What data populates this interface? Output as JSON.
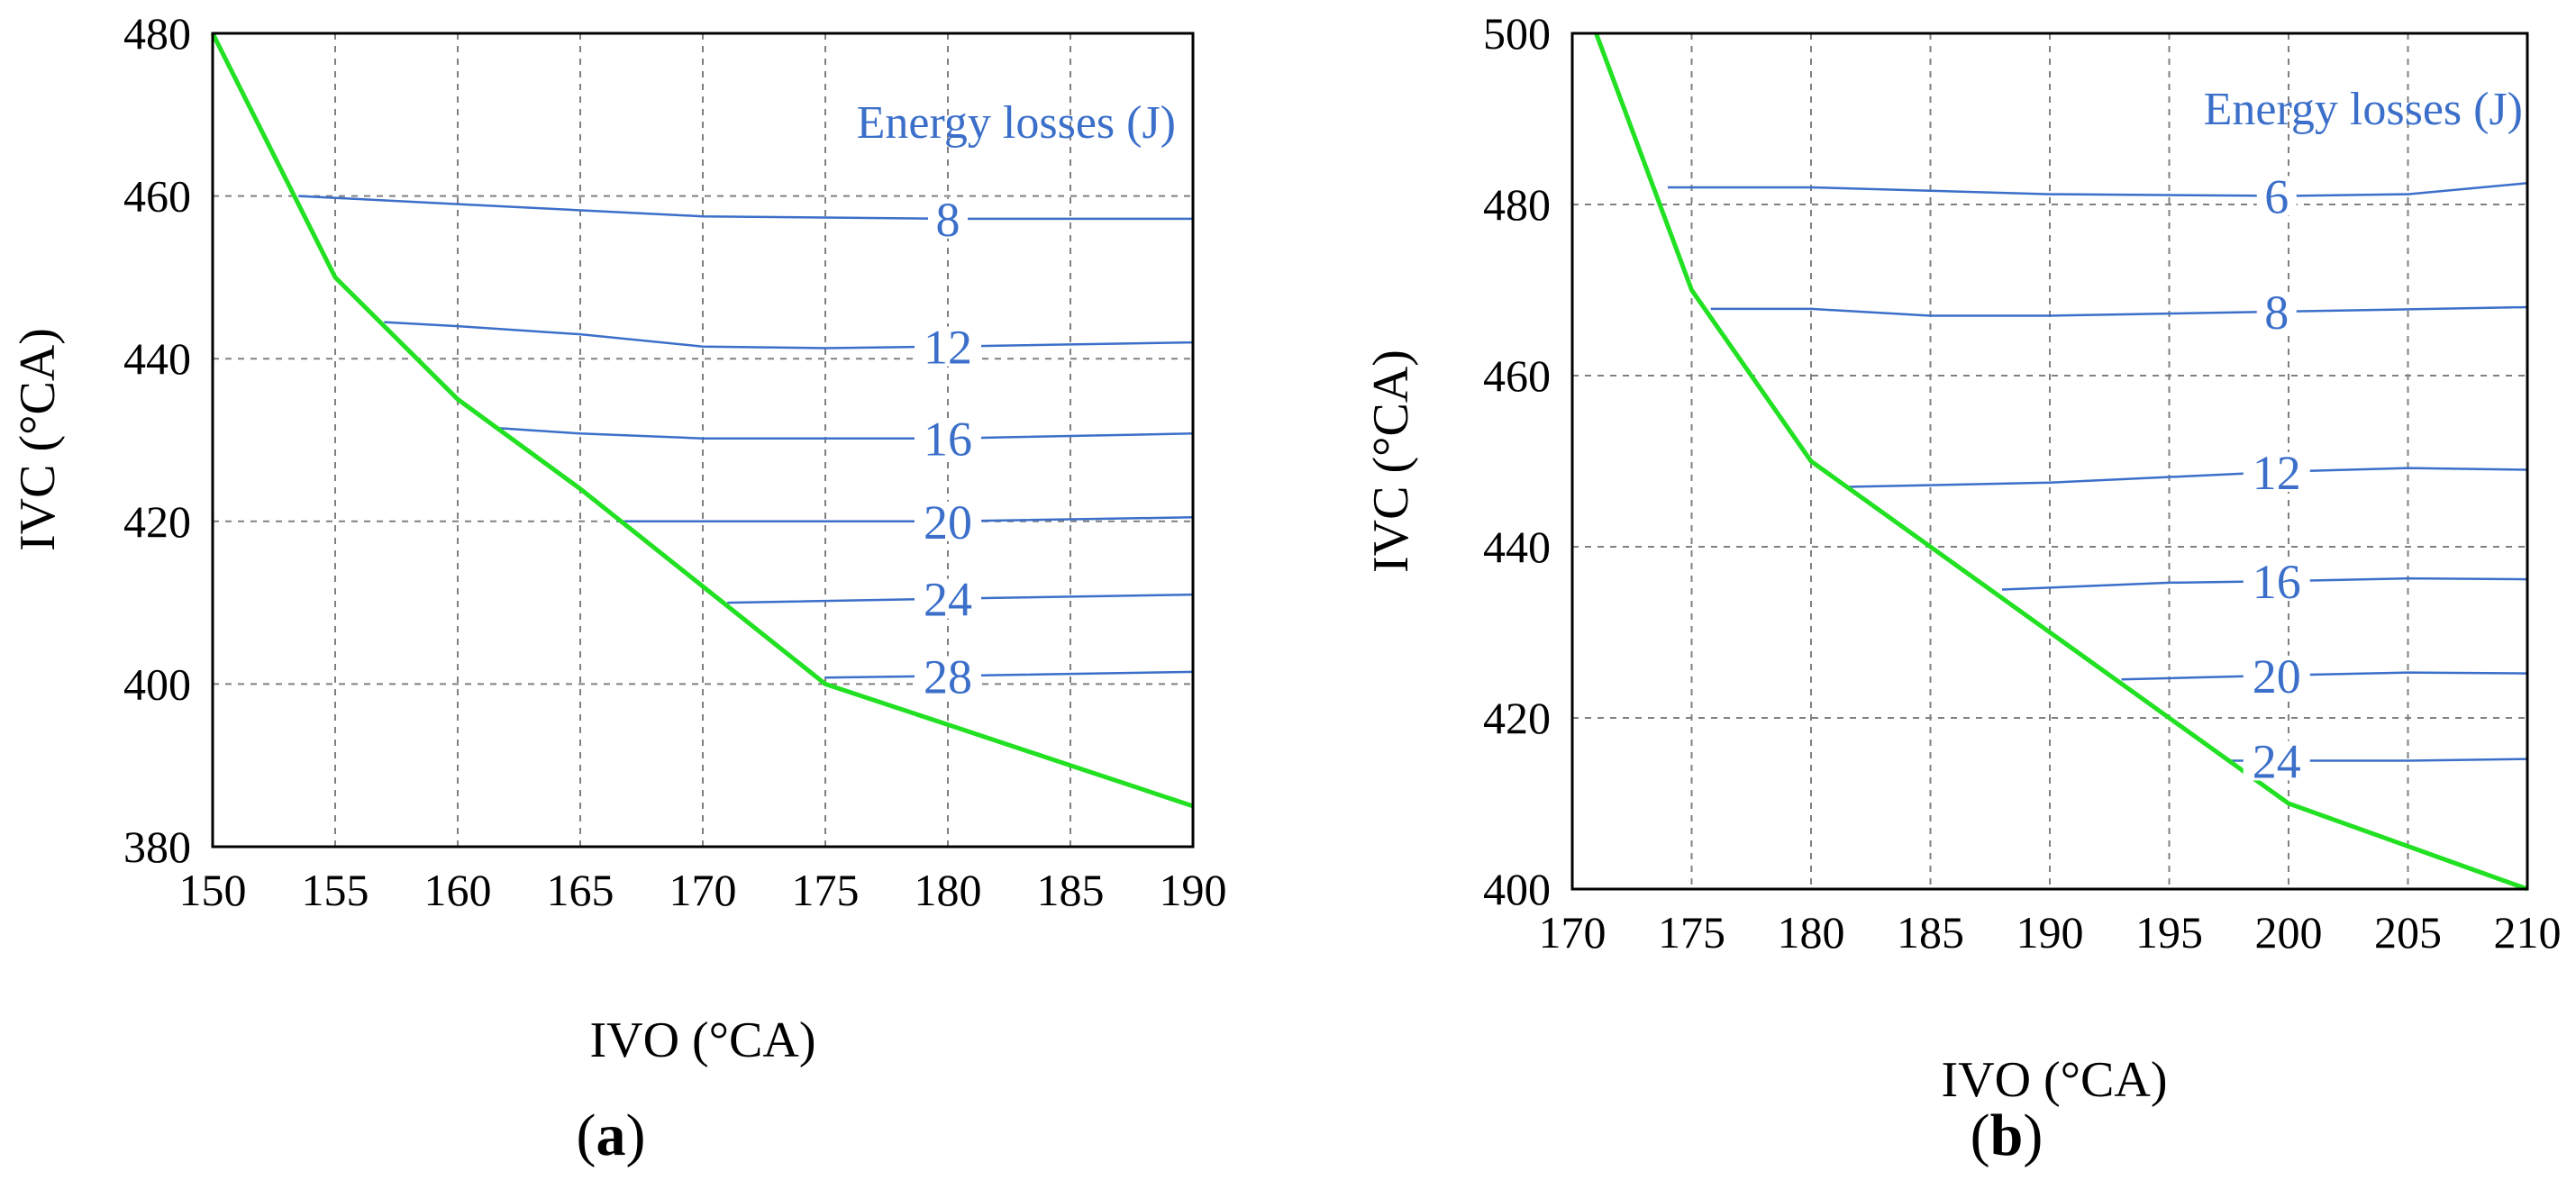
{
  "chart_data": [
    {
      "type": "line",
      "panel_label": "a",
      "xlabel": "IVO (°CA)",
      "ylabel": "IVC (°CA)",
      "xlim": [
        150,
        190
      ],
      "ylim": [
        380,
        480
      ],
      "xticks": [
        150,
        155,
        160,
        165,
        170,
        175,
        180,
        185,
        190
      ],
      "yticks": [
        380,
        400,
        420,
        440,
        460,
        480
      ],
      "grid": true,
      "legend_title": "Energy losses (J)",
      "boundary": {
        "color": "#22e022",
        "points": [
          [
            150,
            480
          ],
          [
            155,
            450
          ],
          [
            160,
            435
          ],
          [
            165,
            424
          ],
          [
            170,
            412
          ],
          [
            175,
            400
          ],
          [
            180,
            395
          ],
          [
            185,
            390
          ],
          [
            190,
            385
          ]
        ]
      },
      "contours": [
        {
          "level": "8",
          "label_x": 180,
          "points": [
            [
              153.5,
              460
            ],
            [
              160,
              459
            ],
            [
              170,
              457.5
            ],
            [
              180,
              457.2
            ],
            [
              190,
              457.2
            ]
          ]
        },
        {
          "level": "12",
          "label_x": 180,
          "points": [
            [
              157,
              444.5
            ],
            [
              160,
              444
            ],
            [
              165,
              443
            ],
            [
              170,
              441.5
            ],
            [
              175,
              441.3
            ],
            [
              180,
              441.5
            ],
            [
              190,
              442
            ]
          ]
        },
        {
          "level": "16",
          "label_x": 180,
          "points": [
            [
              161.5,
              431.5
            ],
            [
              165,
              430.8
            ],
            [
              170,
              430.2
            ],
            [
              180,
              430.2
            ],
            [
              190,
              430.8
            ]
          ]
        },
        {
          "level": "20",
          "label_x": 180,
          "points": [
            [
              166.5,
              420
            ],
            [
              170,
              420
            ],
            [
              180,
              420
            ],
            [
              190,
              420.5
            ]
          ]
        },
        {
          "level": "24",
          "label_x": 180,
          "points": [
            [
              171,
              410
            ],
            [
              180,
              410.5
            ],
            [
              190,
              411
            ]
          ]
        },
        {
          "level": "28",
          "label_x": 180,
          "points": [
            [
              175,
              400.8
            ],
            [
              180,
              401
            ],
            [
              190,
              401.5
            ]
          ]
        }
      ]
    },
    {
      "type": "line",
      "panel_label": "b",
      "xlabel": "IVO (°CA)",
      "ylabel": "IVC (°CA)",
      "xlim": [
        170,
        210
      ],
      "ylim": [
        400,
        500
      ],
      "xticks": [
        170,
        175,
        180,
        185,
        190,
        195,
        200,
        205,
        210
      ],
      "yticks": [
        400,
        420,
        440,
        460,
        480,
        500
      ],
      "grid": true,
      "legend_title": "Energy losses (J)",
      "boundary": {
        "color": "#22e022",
        "points": [
          [
            171,
            500
          ],
          [
            175,
            470
          ],
          [
            180,
            450
          ],
          [
            185,
            440
          ],
          [
            190,
            430
          ],
          [
            195,
            420
          ],
          [
            200,
            410
          ],
          [
            205,
            405
          ],
          [
            210,
            400
          ]
        ]
      },
      "contours": [
        {
          "level": "6",
          "label_x": 199.5,
          "points": [
            [
              174,
              482
            ],
            [
              180,
              482
            ],
            [
              190,
              481.2
            ],
            [
              200,
              481
            ],
            [
              205,
              481.2
            ],
            [
              210,
              482.5
            ]
          ]
        },
        {
          "level": "8",
          "label_x": 199.5,
          "points": [
            [
              175.8,
              467.8
            ],
            [
              180,
              467.8
            ],
            [
              185,
              467
            ],
            [
              190,
              467
            ],
            [
              200,
              467.5
            ],
            [
              210,
              468
            ]
          ]
        },
        {
          "level": "12",
          "label_x": 199.5,
          "points": [
            [
              181.5,
              447
            ],
            [
              190,
              447.5
            ],
            [
              200,
              448.8
            ],
            [
              205,
              449.2
            ],
            [
              210,
              449
            ]
          ]
        },
        {
          "level": "16",
          "label_x": 199.5,
          "points": [
            [
              188,
              435
            ],
            [
              195,
              435.8
            ],
            [
              200,
              436
            ],
            [
              205,
              436.3
            ],
            [
              210,
              436.2
            ]
          ]
        },
        {
          "level": "20",
          "label_x": 199.5,
          "points": [
            [
              193,
              424.5
            ],
            [
              200,
              425
            ],
            [
              205,
              425.3
            ],
            [
              210,
              425.2
            ]
          ]
        },
        {
          "level": "24",
          "label_x": 199.5,
          "points": [
            [
              197.5,
              415
            ],
            [
              200,
              415
            ],
            [
              205,
              415
            ],
            [
              210,
              415.2
            ]
          ]
        }
      ]
    }
  ]
}
